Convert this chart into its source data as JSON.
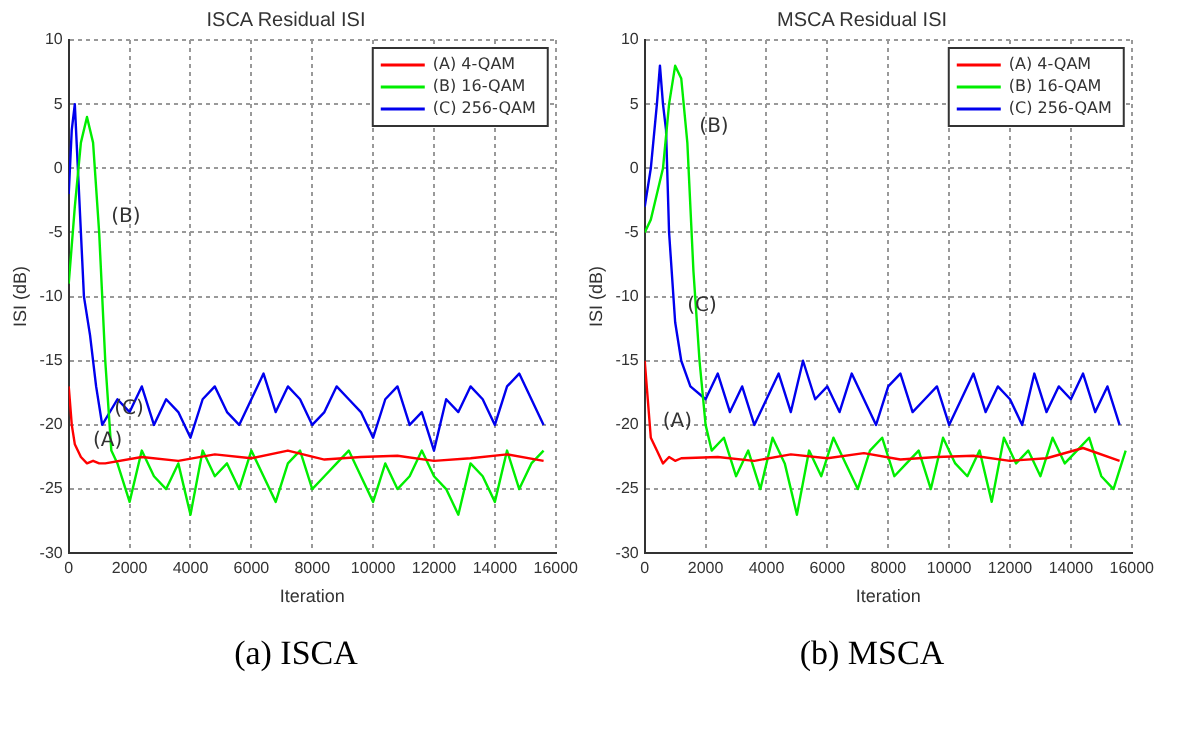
{
  "chart_data": [
    {
      "type": "line",
      "title": "ISCA Residual ISI",
      "xlabel": "Iteration",
      "ylabel": "ISI (dB)",
      "xlim": [
        0,
        16000
      ],
      "ylim": [
        -30,
        10
      ],
      "xticks": [
        0,
        2000,
        4000,
        6000,
        8000,
        10000,
        12000,
        14000,
        16000
      ],
      "yticks": [
        -30,
        -25,
        -20,
        -15,
        -10,
        -5,
        0,
        5,
        10
      ],
      "grid": true,
      "legend": "top right",
      "marker": "none",
      "line_style": "solid",
      "annotations": [
        {
          "text": "(A)",
          "x": 400,
          "y": -22.5
        },
        {
          "text": "(B)",
          "x": 1000,
          "y": -5
        },
        {
          "text": "(C)",
          "x": 1100,
          "y": -20
        },
        "(a) ISCA"
      ],
      "series": [
        {
          "name": "(A) 4-QAM",
          "color": "#ff0000",
          "x": [
            0,
            100,
            200,
            400,
            600,
            800,
            1000,
            1200,
            2400,
            3600,
            4800,
            6000,
            7200,
            8400,
            9600,
            10800,
            12000,
            13200,
            14400,
            15600
          ],
          "values": [
            -17,
            -20,
            -21.5,
            -22.5,
            -23,
            -22.8,
            -23,
            -23,
            -22.5,
            -22.8,
            -22.3,
            -22.6,
            -22,
            -22.7,
            -22.5,
            -22.4,
            -22.8,
            -22.6,
            -22.3,
            -22.8
          ]
        },
        {
          "name": "(B) 16-QAM",
          "color": "#00ee00",
          "x": [
            0,
            200,
            400,
            600,
            800,
            1000,
            1200,
            1400,
            1600,
            2000,
            2400,
            2800,
            3200,
            3600,
            4000,
            4400,
            4800,
            5200,
            5600,
            6000,
            6400,
            6800,
            7200,
            7600,
            8000,
            8400,
            8800,
            9200,
            9600,
            10000,
            10400,
            10800,
            11200,
            11600,
            12000,
            12400,
            12800,
            13200,
            13600,
            14000,
            14400,
            14800,
            15200,
            15600
          ],
          "values": [
            -9,
            -3,
            2,
            4,
            2,
            -5,
            -15,
            -22,
            -23,
            -26,
            -22,
            -24,
            -25,
            -23,
            -27,
            -22,
            -24,
            -23,
            -25,
            -22,
            -24,
            -26,
            -23,
            -22,
            -25,
            -24,
            -23,
            -22,
            -24,
            -26,
            -23,
            -25,
            -24,
            -22,
            -24,
            -25,
            -27,
            -23,
            -24,
            -26,
            -22,
            -25,
            -23,
            -22
          ]
        },
        {
          "name": "(C) 256-QAM",
          "color": "#0000ee",
          "x": [
            0,
            100,
            200,
            300,
            500,
            700,
            900,
            1100,
            1600,
            2000,
            2400,
            2800,
            3200,
            3600,
            4000,
            4400,
            4800,
            5200,
            5600,
            6000,
            6400,
            6800,
            7200,
            7600,
            8000,
            8400,
            8800,
            9200,
            9600,
            10000,
            10400,
            10800,
            11200,
            11600,
            12000,
            12400,
            12800,
            13200,
            13600,
            14000,
            14400,
            14800,
            15200,
            15600
          ],
          "values": [
            -2,
            3,
            5,
            0,
            -10,
            -13,
            -17,
            -20,
            -18,
            -19,
            -17,
            -20,
            -18,
            -19,
            -21,
            -18,
            -17,
            -19,
            -20,
            -18,
            -16,
            -19,
            -17,
            -18,
            -20,
            -19,
            -17,
            -18,
            -19,
            -21,
            -18,
            -17,
            -20,
            -19,
            -22,
            -18,
            -19,
            -17,
            -18,
            -20,
            -17,
            -16,
            -18,
            -20
          ]
        }
      ]
    },
    {
      "type": "line",
      "title": "MSCA Residual ISI",
      "xlabel": "Iteration",
      "ylabel": "ISI (dB)",
      "xlim": [
        0,
        16000
      ],
      "ylim": [
        -30,
        10
      ],
      "xticks": [
        0,
        2000,
        4000,
        6000,
        8000,
        10000,
        12000,
        14000,
        16000
      ],
      "yticks": [
        -30,
        -25,
        -20,
        -15,
        -10,
        -5,
        0,
        5,
        10
      ],
      "grid": true,
      "legend": "top right",
      "marker": "none",
      "line_style": "solid",
      "annotations": [
        {
          "text": "(B)",
          "x": 1400,
          "y": 2
        },
        {
          "text": "(C)",
          "x": 1000,
          "y": -12
        },
        {
          "text": "(A)",
          "x": 200,
          "y": -21
        },
        "(b) MSCA"
      ],
      "series": [
        {
          "name": "(A) 4-QAM",
          "color": "#ff0000",
          "x": [
            0,
            100,
            200,
            400,
            600,
            800,
            1000,
            1200,
            2400,
            3600,
            4800,
            6000,
            7200,
            8400,
            9600,
            10800,
            12000,
            13200,
            14400,
            15600
          ],
          "values": [
            -15,
            -18,
            -21,
            -22,
            -23,
            -22.5,
            -22.8,
            -22.6,
            -22.5,
            -22.8,
            -22.3,
            -22.6,
            -22.2,
            -22.7,
            -22.5,
            -22.4,
            -22.8,
            -22.6,
            -21.8,
            -22.8
          ]
        },
        {
          "name": "(B) 16-QAM",
          "color": "#00ee00",
          "x": [
            0,
            200,
            400,
            600,
            800,
            1000,
            1200,
            1400,
            1600,
            1800,
            2000,
            2200,
            2600,
            3000,
            3400,
            3800,
            4200,
            4600,
            5000,
            5400,
            5800,
            6200,
            6600,
            7000,
            7400,
            7800,
            8200,
            8600,
            9000,
            9400,
            9800,
            10200,
            10600,
            11000,
            11400,
            11800,
            12200,
            12600,
            13000,
            13400,
            13800,
            14200,
            14600,
            15000,
            15400,
            15800
          ],
          "values": [
            -5,
            -4,
            -2,
            0,
            5,
            8,
            7,
            2,
            -8,
            -15,
            -20,
            -22,
            -21,
            -24,
            -22,
            -25,
            -21,
            -23,
            -27,
            -22,
            -24,
            -21,
            -23,
            -25,
            -22,
            -21,
            -24,
            -23,
            -22,
            -25,
            -21,
            -23,
            -24,
            -22,
            -26,
            -21,
            -23,
            -22,
            -24,
            -21,
            -23,
            -22,
            -21,
            -24,
            -25,
            -22
          ]
        },
        {
          "name": "(C) 256-QAM",
          "color": "#0000ee",
          "x": [
            0,
            200,
            400,
            500,
            600,
            700,
            800,
            1000,
            1200,
            1500,
            2000,
            2400,
            2800,
            3200,
            3600,
            4000,
            4400,
            4800,
            5200,
            5600,
            6000,
            6400,
            6800,
            7200,
            7600,
            8000,
            8400,
            8800,
            9200,
            9600,
            10000,
            10400,
            10800,
            11200,
            11600,
            12000,
            12400,
            12800,
            13200,
            13600,
            14000,
            14400,
            14800,
            15200,
            15600
          ],
          "values": [
            -3,
            0,
            5,
            8,
            5,
            3,
            -5,
            -12,
            -15,
            -17,
            -18,
            -16,
            -19,
            -17,
            -20,
            -18,
            -16,
            -19,
            -15,
            -18,
            -17,
            -19,
            -16,
            -18,
            -20,
            -17,
            -16,
            -19,
            -18,
            -17,
            -20,
            -18,
            -16,
            -19,
            -17,
            -18,
            -20,
            -16,
            -19,
            -17,
            -18,
            -16,
            -19,
            -17,
            -20
          ]
        }
      ]
    }
  ]
}
